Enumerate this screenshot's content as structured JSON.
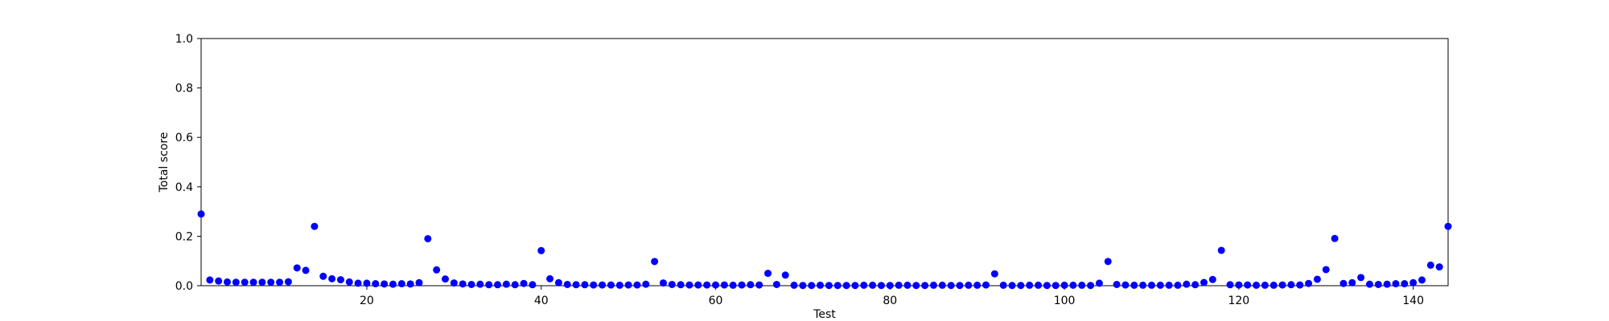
{
  "chart_data": {
    "type": "scatter",
    "xlabel": "Test",
    "ylabel": "Total score",
    "xlim": [
      1,
      144
    ],
    "ylim": [
      0,
      1.0
    ],
    "x_ticks": [
      20,
      40,
      60,
      80,
      100,
      120,
      140
    ],
    "y_ticks": [
      0.0,
      0.2,
      0.4,
      0.6,
      0.8,
      1.0
    ],
    "y_tick_labels": [
      "0.0",
      "0.2",
      "0.4",
      "0.6",
      "0.8",
      "1.0"
    ],
    "grid": false,
    "legend": "none",
    "marker_color": "#0000ff",
    "series": [
      {
        "x": [
          1,
          2,
          3,
          4,
          5,
          6,
          7,
          8,
          9,
          10,
          11,
          12,
          13,
          14,
          15,
          16,
          17,
          18,
          19,
          20,
          21,
          22,
          23,
          24,
          25,
          26,
          27,
          28,
          29,
          30,
          31,
          32,
          33,
          34,
          35,
          36,
          37,
          38,
          39,
          40,
          41,
          42,
          43,
          44,
          45,
          46,
          47,
          48,
          49,
          50,
          51,
          52,
          53,
          54,
          55,
          56,
          57,
          58,
          59,
          60,
          61,
          62,
          63,
          64,
          65,
          66,
          67,
          68,
          69,
          70,
          71,
          72,
          73,
          74,
          75,
          76,
          77,
          78,
          79,
          80,
          81,
          82,
          83,
          84,
          85,
          86,
          87,
          88,
          89,
          90,
          91,
          92,
          93,
          94,
          95,
          96,
          97,
          98,
          99,
          100,
          101,
          102,
          103,
          104,
          105,
          106,
          107,
          108,
          109,
          110,
          111,
          112,
          113,
          114,
          115,
          116,
          117,
          118,
          119,
          120,
          121,
          122,
          123,
          124,
          125,
          126,
          127,
          128,
          129,
          130,
          131,
          132,
          133,
          134,
          135,
          136,
          137,
          138,
          139,
          140,
          141,
          142,
          143,
          144
        ],
        "y": [
          0.29,
          0.023,
          0.019,
          0.015,
          0.014,
          0.014,
          0.014,
          0.014,
          0.014,
          0.014,
          0.016,
          0.072,
          0.062,
          0.24,
          0.038,
          0.028,
          0.024,
          0.015,
          0.01,
          0.01,
          0.008,
          0.007,
          0.006,
          0.008,
          0.007,
          0.012,
          0.19,
          0.064,
          0.027,
          0.011,
          0.007,
          0.005,
          0.006,
          0.004,
          0.004,
          0.006,
          0.004,
          0.009,
          0.004,
          0.142,
          0.028,
          0.012,
          0.005,
          0.004,
          0.004,
          0.003,
          0.003,
          0.003,
          0.002,
          0.003,
          0.003,
          0.006,
          0.098,
          0.011,
          0.005,
          0.004,
          0.003,
          0.003,
          0.003,
          0.003,
          0.003,
          0.002,
          0.003,
          0.004,
          0.003,
          0.05,
          0.005,
          0.043,
          0.002,
          0.001,
          0.001,
          0.002,
          0.001,
          0.001,
          0.001,
          0.001,
          0.002,
          0.002,
          0.001,
          0.001,
          0.002,
          0.002,
          0.001,
          0.001,
          0.002,
          0.002,
          0.001,
          0.001,
          0.002,
          0.002,
          0.003,
          0.048,
          0.002,
          0.001,
          0.001,
          0.002,
          0.002,
          0.001,
          0.001,
          0.002,
          0.002,
          0.002,
          0.001,
          0.01,
          0.098,
          0.005,
          0.003,
          0.002,
          0.002,
          0.002,
          0.002,
          0.002,
          0.002,
          0.006,
          0.004,
          0.013,
          0.025,
          0.143,
          0.004,
          0.003,
          0.003,
          0.002,
          0.002,
          0.002,
          0.003,
          0.004,
          0.003,
          0.009,
          0.026,
          0.065,
          0.191,
          0.009,
          0.012,
          0.033,
          0.006,
          0.005,
          0.006,
          0.008,
          0.008,
          0.012,
          0.023,
          0.083,
          0.076,
          0.24
        ]
      }
    ]
  }
}
